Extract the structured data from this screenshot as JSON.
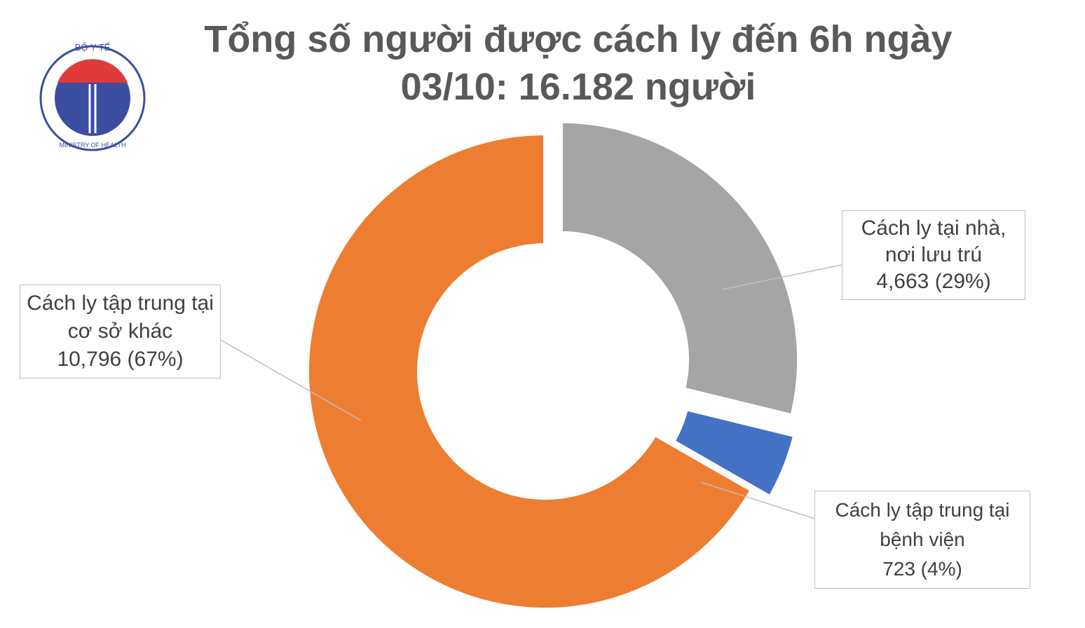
{
  "logo": {
    "top": "BỘ Y TẾ",
    "bottom": "MINISTRY OF HEALTH"
  },
  "chart_data": {
    "type": "donut",
    "title": "Tổng số người được cách ly đến 6h ngày 03/10: 16.182 người",
    "categories": [
      "Cách ly tại nhà, nơi lưu trú",
      "Cách ly tập trung tại bệnh viện",
      "Cách ly tập trung tại cơ sở khác"
    ],
    "values": [
      4663,
      723,
      10796
    ],
    "value_labels": [
      "4,663 (29%)",
      "723 (4%)",
      "10,796 (67%)"
    ],
    "colors": [
      "#a5a5a5",
      "#4472c4",
      "#ed7d31"
    ],
    "exploded": [
      true,
      true,
      false
    ]
  }
}
